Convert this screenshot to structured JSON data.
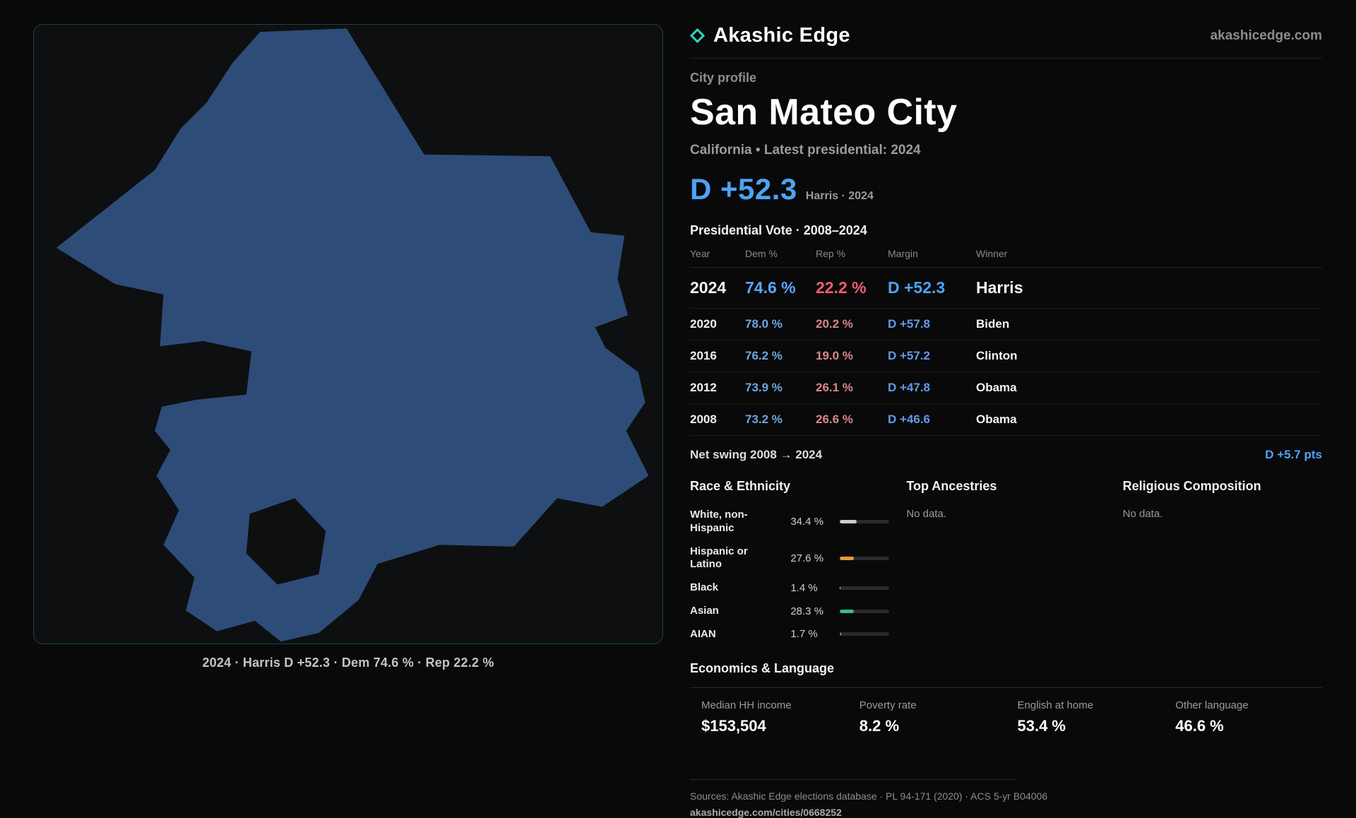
{
  "brand": {
    "name": "Akashic Edge",
    "domain": "akashicedge.com"
  },
  "profile": {
    "kicker": "City profile",
    "title": "San Mateo City",
    "subtitle": "California • Latest presidential: 2024",
    "headline_margin": "D +52.3",
    "headline_note": "Harris · 2024"
  },
  "map": {
    "caption": "2024 · Harris D +52.3 · Dem 74.6 % · Rep 22.2 %",
    "fill": "#2e4c78"
  },
  "vote_table": {
    "title": "Presidential Vote · 2008–2024",
    "columns": [
      "Year",
      "Dem %",
      "Rep %",
      "Margin",
      "Winner"
    ],
    "rows": [
      {
        "year": "2024",
        "dem": "74.6 %",
        "rep": "22.2 %",
        "margin": "D +52.3",
        "winner": "Harris"
      },
      {
        "year": "2020",
        "dem": "78.0 %",
        "rep": "20.2 %",
        "margin": "D +57.8",
        "winner": "Biden"
      },
      {
        "year": "2016",
        "dem": "76.2 %",
        "rep": "19.0 %",
        "margin": "D +57.2",
        "winner": "Clinton"
      },
      {
        "year": "2012",
        "dem": "73.9 %",
        "rep": "26.1 %",
        "margin": "D +47.8",
        "winner": "Obama"
      },
      {
        "year": "2008",
        "dem": "73.2 %",
        "rep": "26.6 %",
        "margin": "D +46.6",
        "winner": "Obama"
      }
    ]
  },
  "net_swing": {
    "label": "Net swing 2008 → 2024",
    "value": "D +5.7 pts"
  },
  "demographics": {
    "race": {
      "title": "Race & Ethnicity",
      "rows": [
        {
          "label": "White, non-Hispanic",
          "value": "34.4 %",
          "pct": 34.4,
          "color": "#c9ced6"
        },
        {
          "label": "Hispanic or Latino",
          "value": "27.6 %",
          "pct": 27.6,
          "color": "#e39b3b"
        },
        {
          "label": "Black",
          "value": "1.4 %",
          "pct": 1.4,
          "color": "#e6e6e6"
        },
        {
          "label": "Asian",
          "value": "28.3 %",
          "pct": 28.3,
          "color": "#2fbf9c"
        },
        {
          "label": "AIAN",
          "value": "1.7 %",
          "pct": 1.7,
          "color": "#d96a5e"
        }
      ]
    },
    "ancestries": {
      "title": "Top Ancestries",
      "empty": "No data."
    },
    "religion": {
      "title": "Religious Composition",
      "empty": "No data."
    }
  },
  "economics": {
    "title": "Economics & Language",
    "stats": [
      {
        "label": "Median HH income",
        "value": "$153,504"
      },
      {
        "label": "Poverty rate",
        "value": "8.2 %"
      },
      {
        "label": "English at home",
        "value": "53.4 %"
      },
      {
        "label": "Other language",
        "value": "46.6 %"
      }
    ]
  },
  "footer": {
    "sources": "Sources: Akashic Edge elections database · PL 94-171 (2020) · ACS 5-yr B04006",
    "permalink": "akashicedge.com/cities/0668252"
  }
}
